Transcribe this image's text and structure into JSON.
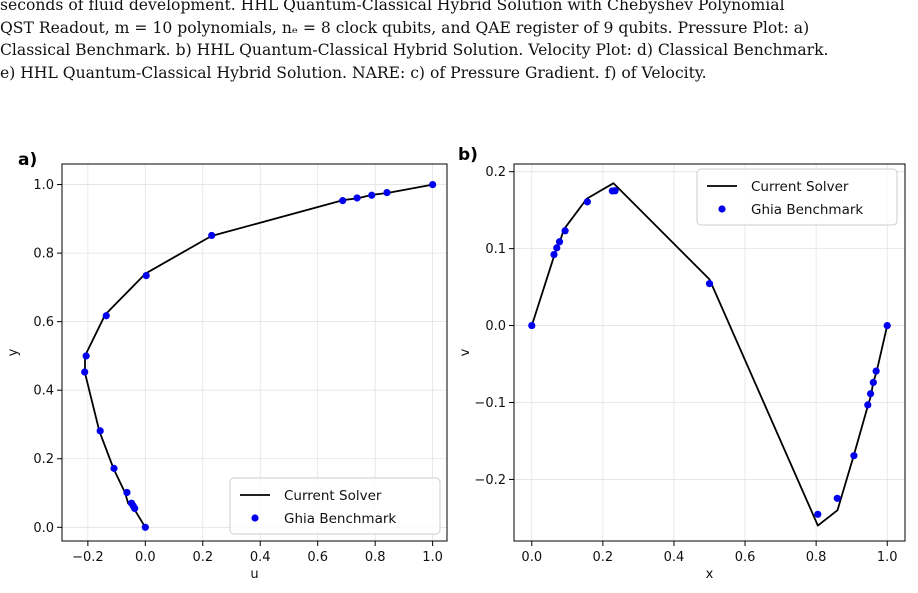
{
  "caption": {
    "lines": [
      "seconds of fluid development. HHL Quantum-Classical Hybrid Solution with Chebyshev Polynomial",
      "QST Readout, m = 10 polynomials, nₑ = 8 clock qubits, and QAE register of 9 qubits. Pressure Plot: a)",
      "Classical Benchmark. b) HHL Quantum-Classical Hybrid Solution. Velocity Plot: d) Classical Benchmark.",
      "e) HHL Quantum-Classical Hybrid Solution. NARE: c) of Pressure Gradient. f) of Velocity."
    ]
  },
  "chart_data": [
    {
      "type": "line",
      "panel_label": "a)",
      "xlabel": "u",
      "ylabel": "y",
      "xlim": [
        -0.29,
        1.05
      ],
      "ylim": [
        -0.04,
        1.06
      ],
      "xticks": [
        -0.2,
        0.0,
        0.2,
        0.4,
        0.6,
        0.8,
        1.0
      ],
      "xtick_labels": [
        "−0.2",
        "0.0",
        "0.2",
        "0.4",
        "0.6",
        "0.8",
        "1.0"
      ],
      "yticks": [
        0.0,
        0.2,
        0.4,
        0.6,
        0.8,
        1.0
      ],
      "ytick_labels": [
        "0.0",
        "0.2",
        "0.4",
        "0.6",
        "0.8",
        "1.0"
      ],
      "grid": true,
      "legend_position": "bottom-right",
      "series": [
        {
          "name": "Current Solver",
          "kind": "line",
          "color": "#000000",
          "x": [
            0.0,
            -0.04,
            -0.06,
            -0.07,
            -0.11,
            -0.16,
            -0.21,
            -0.21,
            -0.14,
            0.0,
            0.23,
            0.69,
            0.74,
            0.79,
            0.84,
            1.0
          ],
          "y": [
            0.0,
            0.055,
            0.07,
            0.1,
            0.17,
            0.28,
            0.45,
            0.5,
            0.62,
            0.74,
            0.85,
            0.955,
            0.96,
            0.97,
            0.975,
            1.0
          ]
        },
        {
          "name": "Ghia Benchmark",
          "kind": "scatter",
          "color": "#0000ee",
          "x": [
            0.0,
            -0.037,
            -0.042,
            -0.048,
            -0.064,
            -0.109,
            -0.157,
            -0.211,
            -0.206,
            -0.136,
            0.003,
            0.231,
            0.687,
            0.737,
            0.788,
            0.841,
            1.0
          ],
          "y": [
            0.0,
            0.055,
            0.0625,
            0.0703,
            0.1016,
            0.1719,
            0.2813,
            0.4531,
            0.5,
            0.6172,
            0.7344,
            0.8516,
            0.9531,
            0.9609,
            0.9688,
            0.9766,
            1.0
          ]
        }
      ]
    },
    {
      "type": "line",
      "panel_label": "b)",
      "xlabel": "x",
      "ylabel": "v",
      "xlim": [
        -0.05,
        1.05
      ],
      "ylim": [
        -0.28,
        0.21
      ],
      "xticks": [
        0.0,
        0.2,
        0.4,
        0.6,
        0.8,
        1.0
      ],
      "xtick_labels": [
        "0.0",
        "0.2",
        "0.4",
        "0.6",
        "0.8",
        "1.0"
      ],
      "yticks": [
        -0.2,
        -0.1,
        0.0,
        0.1,
        0.2
      ],
      "ytick_labels": [
        "−0.2",
        "−0.1",
        "0.0",
        "0.1",
        "0.2"
      ],
      "grid": true,
      "legend_position": "top-right",
      "series": [
        {
          "name": "Current Solver",
          "kind": "line",
          "color": "#000000",
          "x": [
            0.0,
            0.0625,
            0.07,
            0.08,
            0.09,
            0.155,
            0.23,
            0.5,
            0.805,
            0.86,
            0.905,
            0.945,
            0.955,
            0.96,
            0.97,
            1.0
          ],
          "y": [
            0.0,
            0.09,
            0.1,
            0.11,
            0.125,
            0.165,
            0.185,
            0.06,
            -0.26,
            -0.24,
            -0.17,
            -0.105,
            -0.09,
            -0.075,
            -0.06,
            0.0
          ]
        },
        {
          "name": "Ghia Benchmark",
          "kind": "scatter",
          "color": "#0000ee",
          "x": [
            0.0,
            0.0625,
            0.0703,
            0.0781,
            0.0938,
            0.1563,
            0.2266,
            0.2344,
            0.5,
            0.8047,
            0.8594,
            0.9063,
            0.9453,
            0.9531,
            0.9609,
            0.9688,
            1.0
          ],
          "y": [
            0.0,
            0.0923,
            0.101,
            0.1089,
            0.1232,
            0.1608,
            0.175,
            0.1752,
            0.0545,
            -0.2453,
            -0.2245,
            -0.1691,
            -0.1031,
            -0.0886,
            -0.0739,
            -0.0591,
            0.0
          ]
        }
      ]
    }
  ]
}
